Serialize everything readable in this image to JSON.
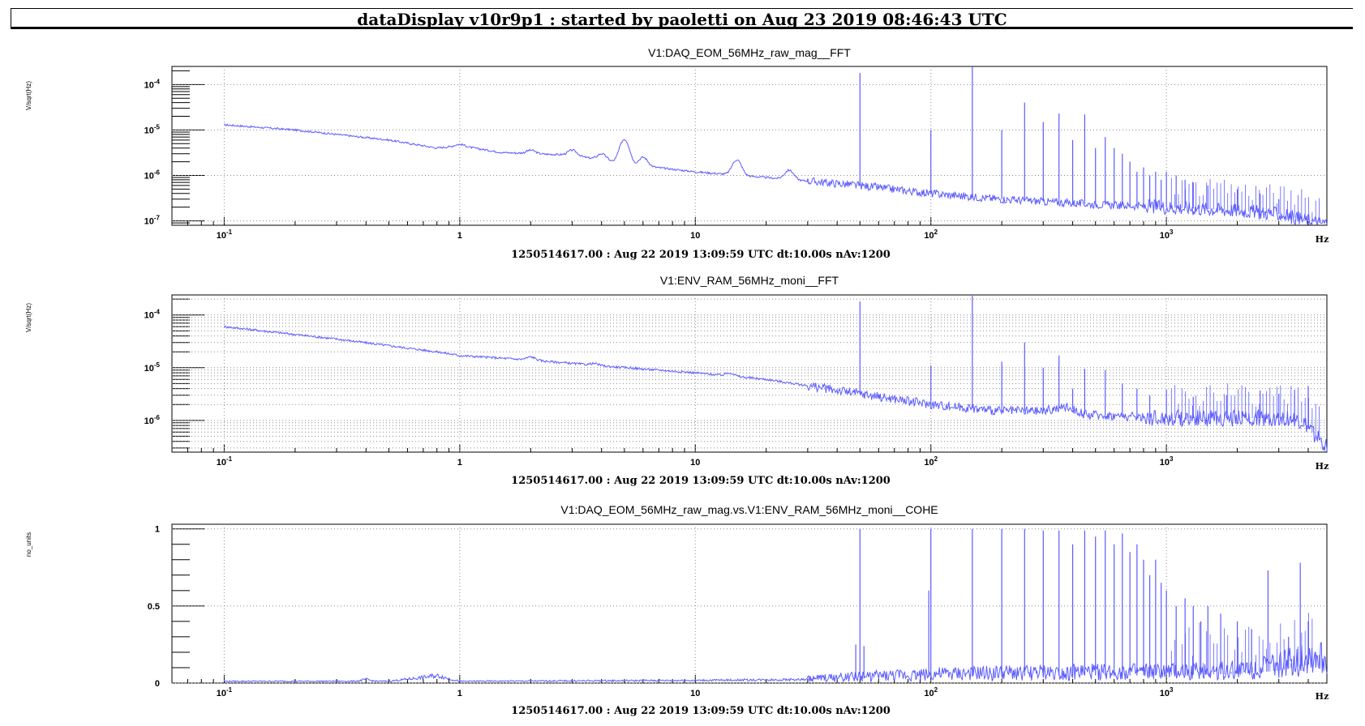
{
  "header": {
    "title": "dataDisplay v10r9p1 : started by paoletti on Aug 23 2019 08:46:43 UTC"
  },
  "colors": {
    "trace": "#5b5bff",
    "grid": "#8c8c8c",
    "frame": "#000000"
  },
  "chart_data": [
    {
      "type": "line",
      "title": "V1:DAQ_EOM_56MHz_raw_mag__FFT",
      "ylabel": "V/sqrt(Hz)",
      "xlabel": "Hz",
      "footer": "1250514617.00 : Aug 22 2019 13:09:59 UTC dt:10.00s nAv:1200",
      "xscale": "log",
      "yscale": "log",
      "xlim": [
        0.06,
        4800
      ],
      "ylim": [
        8e-08,
        0.00025
      ],
      "x_ticks": [
        {
          "value": 0.1,
          "label": "10",
          "sup": "-1"
        },
        {
          "value": 1,
          "label": "1",
          "sup": ""
        },
        {
          "value": 10,
          "label": "10",
          "sup": ""
        },
        {
          "value": 100,
          "label": "10",
          "sup": "2"
        },
        {
          "value": 1000,
          "label": "10",
          "sup": "3"
        }
      ],
      "y_ticks": [
        {
          "value": 0.0001,
          "label": "10",
          "sup": "-4"
        },
        {
          "value": 1e-05,
          "label": "10",
          "sup": "-5"
        },
        {
          "value": 1e-06,
          "label": "10",
          "sup": "-6"
        },
        {
          "value": 1e-07,
          "label": "10",
          "sup": "-7"
        }
      ],
      "baseline": [
        [
          0.1,
          1.3e-05
        ],
        [
          0.2,
          1e-05
        ],
        [
          0.5,
          6e-06
        ],
        [
          0.8,
          4e-06
        ],
        [
          1,
          4.5e-06
        ],
        [
          1.5,
          3.2e-06
        ],
        [
          3,
          2.8e-06
        ],
        [
          5,
          1.8e-06
        ],
        [
          10,
          1.2e-06
        ],
        [
          20,
          9e-07
        ],
        [
          50,
          6e-07
        ],
        [
          100,
          4e-07
        ],
        [
          200,
          3e-07
        ],
        [
          500,
          2.3e-07
        ],
        [
          1000,
          2e-07
        ],
        [
          2000,
          1.7e-07
        ],
        [
          3000,
          1.4e-07
        ],
        [
          4500,
          9e-08
        ]
      ],
      "bumps": [
        [
          1,
          4.8e-06
        ],
        [
          2,
          3.6e-06
        ],
        [
          3,
          3.6e-06
        ],
        [
          4,
          3e-06
        ],
        [
          5,
          6.2e-06
        ],
        [
          6,
          2.5e-06
        ],
        [
          15,
          2.2e-06
        ],
        [
          25,
          1.3e-06
        ]
      ],
      "peaks": [
        [
          50,
          0.00018
        ],
        [
          100,
          1e-05
        ],
        [
          150,
          0.00025
        ],
        [
          200,
          1e-05
        ],
        [
          250,
          4e-05
        ],
        [
          300,
          1.5e-05
        ],
        [
          350,
          2.3e-05
        ],
        [
          400,
          6e-06
        ],
        [
          450,
          2.2e-05
        ],
        [
          500,
          4e-06
        ],
        [
          550,
          7e-06
        ],
        [
          600,
          4e-06
        ],
        [
          650,
          3e-06
        ],
        [
          700,
          2e-06
        ],
        [
          750,
          1.2e-06
        ],
        [
          800,
          1.5e-06
        ],
        [
          850,
          1e-06
        ],
        [
          900,
          1.2e-06
        ],
        [
          950,
          8e-07
        ],
        [
          1000,
          1.2e-06
        ],
        [
          1100,
          1e-06
        ],
        [
          1200,
          8e-07
        ],
        [
          1300,
          7e-07
        ],
        [
          1500,
          6e-07
        ],
        [
          2000,
          5e-07
        ],
        [
          2500,
          4e-07
        ],
        [
          3000,
          3e-07
        ]
      ]
    },
    {
      "type": "line",
      "title": "V1:ENV_RAM_56MHz_moni__FFT",
      "ylabel": "V/sqrt(Hz)",
      "xlabel": "Hz",
      "footer": "1250514617.00 : Aug 22 2019 13:09:59 UTC dt:10.00s nAv:1200",
      "xscale": "log",
      "yscale": "log",
      "xlim": [
        0.06,
        4800
      ],
      "ylim": [
        2.5e-07,
        0.00024
      ],
      "x_ticks": [
        {
          "value": 0.1,
          "label": "10",
          "sup": "-1"
        },
        {
          "value": 1,
          "label": "1",
          "sup": ""
        },
        {
          "value": 10,
          "label": "10",
          "sup": ""
        },
        {
          "value": 100,
          "label": "10",
          "sup": "2"
        },
        {
          "value": 1000,
          "label": "10",
          "sup": "3"
        }
      ],
      "y_ticks": [
        {
          "value": 0.0001,
          "label": "10",
          "sup": "-4"
        },
        {
          "value": 1e-05,
          "label": "10",
          "sup": "-5"
        },
        {
          "value": 1e-06,
          "label": "10",
          "sup": "-6"
        }
      ],
      "baseline": [
        [
          0.1,
          6e-05
        ],
        [
          0.3,
          3.5e-05
        ],
        [
          0.8,
          2e-05
        ],
        [
          1,
          1.7e-05
        ],
        [
          2,
          1.4e-05
        ],
        [
          5,
          1e-05
        ],
        [
          10,
          8e-06
        ],
        [
          20,
          6e-06
        ],
        [
          50,
          3.2e-06
        ],
        [
          100,
          2e-06
        ],
        [
          200,
          1.5e-06
        ],
        [
          300,
          1.5e-06
        ],
        [
          380,
          1.8e-06
        ],
        [
          450,
          1.3e-06
        ],
        [
          1000,
          1.1e-06
        ],
        [
          2000,
          1.1e-06
        ],
        [
          3200,
          1.1e-06
        ],
        [
          3800,
          9e-07
        ],
        [
          4300,
          5e-07
        ],
        [
          4800,
          3e-07
        ]
      ],
      "bumps": [
        [
          2,
          1.6e-05
        ],
        [
          3.7,
          1.2e-05
        ],
        [
          5.2,
          1e-05
        ],
        [
          7,
          9e-06
        ],
        [
          14,
          8e-06
        ]
      ],
      "peaks": [
        [
          50,
          0.00018
        ],
        [
          100,
          1.1e-05
        ],
        [
          150,
          0.00023
        ],
        [
          200,
          1.3e-05
        ],
        [
          250,
          3e-05
        ],
        [
          300,
          1e-05
        ],
        [
          350,
          1.7e-05
        ],
        [
          400,
          4e-06
        ],
        [
          450,
          9.5e-06
        ],
        [
          550,
          9e-06
        ],
        [
          650,
          5e-06
        ],
        [
          750,
          4e-06
        ],
        [
          850,
          3e-06
        ],
        [
          1000,
          3.8e-06
        ],
        [
          1300,
          2.8e-06
        ],
        [
          1800,
          3e-06
        ],
        [
          2500,
          3.7e-06
        ],
        [
          3000,
          3.2e-06
        ],
        [
          3500,
          3.8e-06
        ],
        [
          4000,
          4.5e-06
        ]
      ]
    },
    {
      "type": "line",
      "title": "V1:DAQ_EOM_56MHz_raw_mag.vs.V1:ENV_RAM_56MHz_moni__COHE",
      "ylabel": "no_units",
      "xlabel": "Hz",
      "footer": "1250514617.00 : Aug 22 2019 13:09:59 UTC dt:10.00s nAv:1200",
      "xscale": "log",
      "yscale": "linear",
      "xlim": [
        0.06,
        4800
      ],
      "ylim": [
        0,
        1.03
      ],
      "x_ticks": [
        {
          "value": 0.1,
          "label": "10",
          "sup": "-1"
        },
        {
          "value": 1,
          "label": "1",
          "sup": ""
        },
        {
          "value": 10,
          "label": "10",
          "sup": ""
        },
        {
          "value": 100,
          "label": "10",
          "sup": "2"
        },
        {
          "value": 1000,
          "label": "10",
          "sup": "3"
        }
      ],
      "y_ticks": [
        {
          "value": 1,
          "label": "1",
          "sup": ""
        },
        {
          "value": 0.5,
          "label": "0.5",
          "sup": ""
        },
        {
          "value": 0,
          "label": "0",
          "sup": ""
        }
      ],
      "baseline": [
        [
          0.1,
          0.01
        ],
        [
          0.5,
          0.01
        ],
        [
          0.8,
          0.04
        ],
        [
          1,
          0.01
        ],
        [
          10,
          0.015
        ],
        [
          30,
          0.02
        ],
        [
          50,
          0.03
        ],
        [
          100,
          0.04
        ],
        [
          200,
          0.045
        ],
        [
          500,
          0.05
        ],
        [
          1000,
          0.05
        ],
        [
          2000,
          0.06
        ],
        [
          3000,
          0.08
        ],
        [
          4000,
          0.12
        ],
        [
          4800,
          0.1
        ]
      ],
      "bumps": [
        [
          0.8,
          0.04
        ],
        [
          0.4,
          0.02
        ]
      ],
      "peaks": [
        [
          48,
          0.25
        ],
        [
          50,
          1.0
        ],
        [
          52,
          0.24
        ],
        [
          100,
          1.0
        ],
        [
          98,
          0.6
        ],
        [
          150,
          1.0
        ],
        [
          200,
          1.0
        ],
        [
          250,
          1.0
        ],
        [
          300,
          0.99
        ],
        [
          350,
          0.99
        ],
        [
          400,
          0.9
        ],
        [
          450,
          0.99
        ],
        [
          500,
          0.95
        ],
        [
          550,
          0.99
        ],
        [
          600,
          0.9
        ],
        [
          650,
          0.97
        ],
        [
          700,
          0.85
        ],
        [
          750,
          0.9
        ],
        [
          800,
          0.8
        ],
        [
          850,
          0.7
        ],
        [
          900,
          0.8
        ],
        [
          950,
          0.65
        ],
        [
          1000,
          0.6
        ],
        [
          1100,
          0.5
        ],
        [
          1200,
          0.55
        ],
        [
          1300,
          0.5
        ],
        [
          1400,
          0.4
        ],
        [
          1500,
          0.5
        ],
        [
          1700,
          0.45
        ],
        [
          2000,
          0.4
        ],
        [
          2300,
          0.35
        ],
        [
          2700,
          0.73
        ],
        [
          3300,
          0.3
        ],
        [
          3700,
          0.78
        ],
        [
          4000,
          0.4
        ]
      ]
    }
  ]
}
